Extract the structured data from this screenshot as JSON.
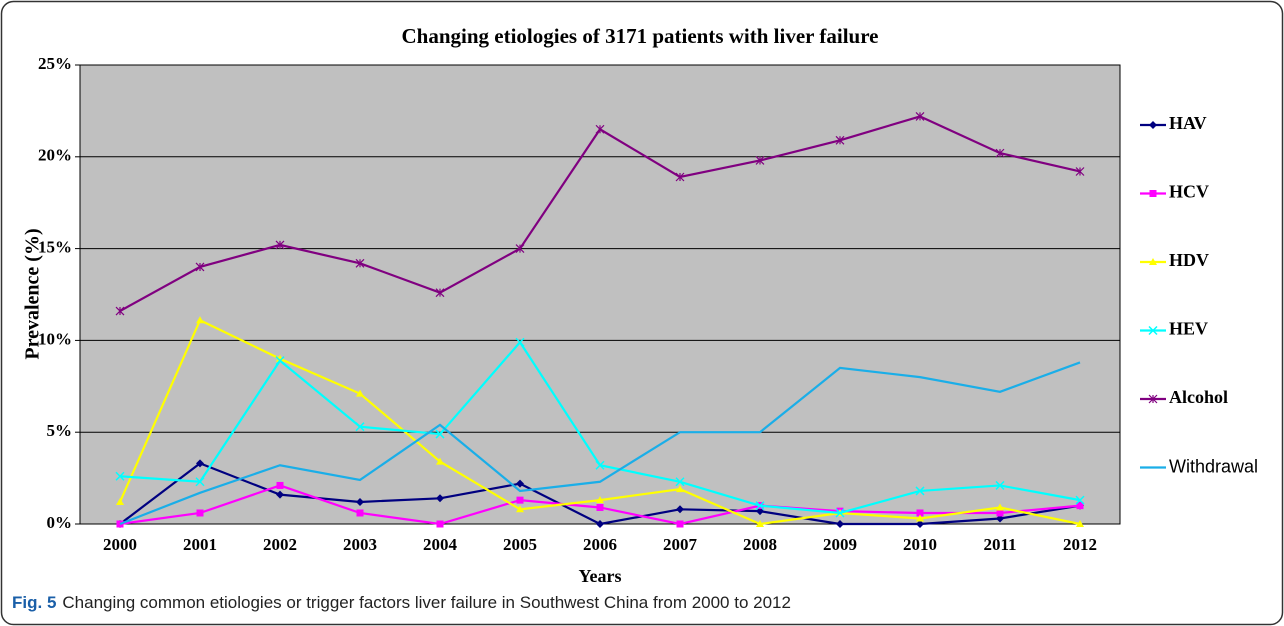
{
  "chart_data": {
    "type": "line",
    "title": "Changing etiologies of 3171 patients with liver failure",
    "x_label": "Years",
    "y_label": "Prevalence (%)",
    "categories": [
      "2000",
      "2001",
      "2002",
      "2003",
      "2004",
      "2005",
      "2006",
      "2007",
      "2008",
      "2009",
      "2010",
      "2011",
      "2012"
    ],
    "series": [
      {
        "name": "HAV",
        "color": "#000080",
        "marker": "diamond",
        "values": [
          0,
          3.3,
          1.6,
          1.2,
          1.4,
          2.2,
          0,
          0.8,
          0.7,
          0,
          0,
          0.3,
          1.0
        ]
      },
      {
        "name": "HCV",
        "color": "#ff00ff",
        "marker": "square",
        "values": [
          0,
          0.6,
          2.1,
          0.6,
          0,
          1.3,
          0.9,
          0,
          1.0,
          0.7,
          0.6,
          0.6,
          1.0
        ]
      },
      {
        "name": "HDV",
        "color": "#ffff00",
        "marker": "triangle",
        "values": [
          1.2,
          11.1,
          9.0,
          7.1,
          3.4,
          0.8,
          1.3,
          1.9,
          0,
          0.6,
          0.3,
          0.9,
          0
        ]
      },
      {
        "name": "HEV",
        "color": "#00ffff",
        "marker": "x",
        "values": [
          2.6,
          2.3,
          8.9,
          5.3,
          4.9,
          9.9,
          3.2,
          2.3,
          1.0,
          0.6,
          1.8,
          2.1,
          1.3
        ]
      },
      {
        "name": "Alcohol",
        "color": "#800080",
        "marker": "star",
        "values": [
          11.6,
          14.0,
          15.2,
          14.2,
          12.6,
          15.0,
          21.5,
          18.9,
          19.8,
          20.9,
          22.2,
          20.2,
          19.2
        ]
      },
      {
        "name": "Withdrawal",
        "color": "#1aaee8",
        "marker": "none",
        "values": [
          0,
          1.7,
          3.2,
          2.4,
          5.4,
          1.8,
          2.3,
          5.0,
          5.0,
          8.5,
          8.0,
          7.2,
          8.8
        ]
      }
    ],
    "ylim": [
      0,
      25
    ],
    "yticks": [
      {
        "value": 0,
        "label": "0%"
      },
      {
        "value": 5,
        "label": "5%"
      },
      {
        "value": 10,
        "label": "10%"
      },
      {
        "value": 15,
        "label": "15%"
      },
      {
        "value": 20,
        "label": "20%"
      },
      {
        "value": 25,
        "label": "25%"
      }
    ],
    "grid": true,
    "legend": "right",
    "caption_label": "Fig. 5",
    "caption": "Changing common etiologies or trigger factors liver failure in Southwest China from 2000 to 2012"
  }
}
